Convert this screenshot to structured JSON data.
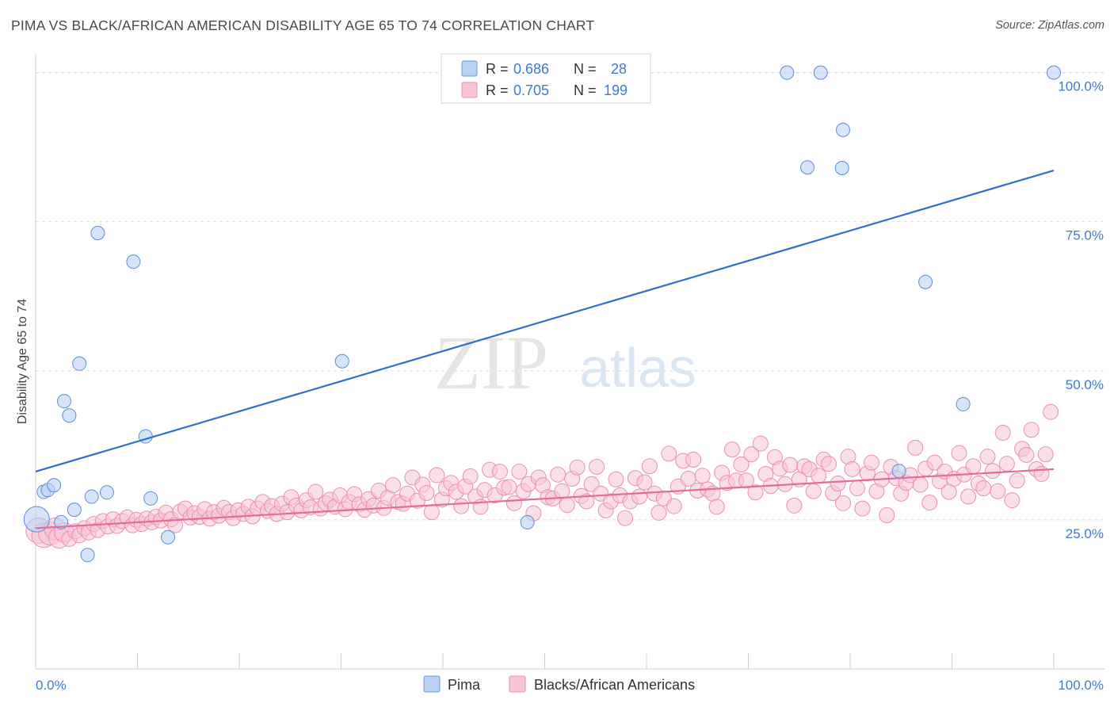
{
  "title": "PIMA VS BLACK/AFRICAN AMERICAN DISABILITY AGE 65 TO 74 CORRELATION CHART",
  "source": "Source: ZipAtlas.com",
  "watermark": {
    "zip": "ZIP",
    "atlas": "atlas"
  },
  "legend_top": [
    {
      "r_label": "R = ",
      "r_value": "0.686",
      "n_label": "N = ",
      "n_value": "28",
      "color": "#6a9ee0",
      "fill": "#b9d2f4"
    },
    {
      "r_label": "R = ",
      "r_value": "0.705",
      "n_label": "N = ",
      "n_value": "199",
      "color": "#ea8fb0",
      "fill": "#f7c5d6"
    }
  ],
  "legend_bottom": [
    {
      "label": "Pima",
      "fill": "#b9d2f4",
      "stroke": "#6a9ee0"
    },
    {
      "label": "Blacks/African Americans",
      "fill": "#f7c5d6",
      "stroke": "#ea8fb0"
    }
  ],
  "colors": {
    "accent_text": "#3c7bd4",
    "pima_line": "#2c6fcf",
    "black_line": "#e56b9a",
    "grid": "#d9d9d9"
  },
  "chart_data": {
    "type": "scatter",
    "title": "PIMA VS BLACK/AFRICAN AMERICAN DISABILITY AGE 65 TO 74 CORRELATION CHART",
    "xlabel": "",
    "ylabel": "Disability Age 65 to 74",
    "xlim": [
      0,
      100
    ],
    "ylim": [
      0,
      105
    ],
    "x_tick_labels": [
      "0.0%",
      "100.0%"
    ],
    "y_ticks": [
      25,
      50,
      75,
      100
    ],
    "y_tick_labels": [
      "25.0%",
      "50.0%",
      "75.0%",
      "100.0%"
    ],
    "grid": "horizontal dashed",
    "legend_position": "top-center",
    "series": [
      {
        "name": "Pima",
        "r": 0.686,
        "n": 28,
        "trend": [
          [
            0,
            33.1
          ],
          [
            100,
            83.6
          ]
        ],
        "points": [
          [
            0.1,
            25.1
          ],
          [
            0.8,
            29.7
          ],
          [
            1.2,
            30.0
          ],
          [
            1.8,
            30.8
          ],
          [
            2.5,
            24.6
          ],
          [
            2.8,
            44.9
          ],
          [
            3.3,
            42.5
          ],
          [
            3.8,
            26.7
          ],
          [
            4.3,
            51.2
          ],
          [
            5.1,
            19.1
          ],
          [
            5.5,
            28.9
          ],
          [
            6.1,
            73.1
          ],
          [
            7.0,
            29.6
          ],
          [
            9.6,
            68.3
          ],
          [
            10.8,
            39.0
          ],
          [
            11.3,
            28.6
          ],
          [
            13.0,
            22.1
          ],
          [
            30.1,
            51.6
          ],
          [
            48.3,
            24.6
          ],
          [
            73.8,
            100
          ],
          [
            77.1,
            100
          ],
          [
            75.8,
            84.1
          ],
          [
            79.3,
            90.4
          ],
          [
            79.2,
            84.0
          ],
          [
            84.8,
            33.2
          ],
          [
            87.4,
            64.9
          ],
          [
            91.1,
            44.4
          ],
          [
            100,
            100
          ]
        ]
      },
      {
        "name": "Blacks/African Americans",
        "r": 0.705,
        "n": 199,
        "trend": [
          [
            0,
            23.6
          ],
          [
            100,
            33.5
          ]
        ],
        "points": [
          [
            0.3,
            23.2
          ],
          [
            0.8,
            22.4
          ],
          [
            1.4,
            22.7
          ],
          [
            1.9,
            23.5
          ],
          [
            2.3,
            22.0
          ],
          [
            2.8,
            22.9
          ],
          [
            3.3,
            21.8
          ],
          [
            3.9,
            23.1
          ],
          [
            4.3,
            22.4
          ],
          [
            4.8,
            23.6
          ],
          [
            5.2,
            22.9
          ],
          [
            5.7,
            24.3
          ],
          [
            6.1,
            23.3
          ],
          [
            6.6,
            24.8
          ],
          [
            7.1,
            23.9
          ],
          [
            7.6,
            25.1
          ],
          [
            8.0,
            24.0
          ],
          [
            8.5,
            24.8
          ],
          [
            9.0,
            25.4
          ],
          [
            9.5,
            24.1
          ],
          [
            9.9,
            25.0
          ],
          [
            10.4,
            24.3
          ],
          [
            10.9,
            25.2
          ],
          [
            11.4,
            24.6
          ],
          [
            11.8,
            25.5
          ],
          [
            12.3,
            24.9
          ],
          [
            12.8,
            26.2
          ],
          [
            13.3,
            25.1
          ],
          [
            13.7,
            24.1
          ],
          [
            14.2,
            26.4
          ],
          [
            14.7,
            26.9
          ],
          [
            15.2,
            25.4
          ],
          [
            15.6,
            26.1
          ],
          [
            16.1,
            25.5
          ],
          [
            16.6,
            26.8
          ],
          [
            17.1,
            25.2
          ],
          [
            17.5,
            26.3
          ],
          [
            18.0,
            25.7
          ],
          [
            18.5,
            27.0
          ],
          [
            19.0,
            26.3
          ],
          [
            19.4,
            25.3
          ],
          [
            19.9,
            26.6
          ],
          [
            20.4,
            26.0
          ],
          [
            20.9,
            27.2
          ],
          [
            21.3,
            25.6
          ],
          [
            21.8,
            26.9
          ],
          [
            22.3,
            28.0
          ],
          [
            22.8,
            26.5
          ],
          [
            23.2,
            27.3
          ],
          [
            23.7,
            26.0
          ],
          [
            24.2,
            27.7
          ],
          [
            24.7,
            26.3
          ],
          [
            25.1,
            28.8
          ],
          [
            25.6,
            27.4
          ],
          [
            26.1,
            26.6
          ],
          [
            26.6,
            28.3
          ],
          [
            27.0,
            27.1
          ],
          [
            27.5,
            29.7
          ],
          [
            28.0,
            26.9
          ],
          [
            28.5,
            27.8
          ],
          [
            28.9,
            28.4
          ],
          [
            29.4,
            27.2
          ],
          [
            29.9,
            29.1
          ],
          [
            30.4,
            26.8
          ],
          [
            30.8,
            28.0
          ],
          [
            31.3,
            29.3
          ],
          [
            31.8,
            27.6
          ],
          [
            32.3,
            26.7
          ],
          [
            32.7,
            28.5
          ],
          [
            33.2,
            27.4
          ],
          [
            33.7,
            29.9
          ],
          [
            34.2,
            27.0
          ],
          [
            34.6,
            28.7
          ],
          [
            35.1,
            30.8
          ],
          [
            35.6,
            28.0
          ],
          [
            36.1,
            27.7
          ],
          [
            36.5,
            29.4
          ],
          [
            37.0,
            32.1
          ],
          [
            37.5,
            28.2
          ],
          [
            38.0,
            30.9
          ],
          [
            38.4,
            29.5
          ],
          [
            38.9,
            26.3
          ],
          [
            39.4,
            32.5
          ],
          [
            39.9,
            28.4
          ],
          [
            40.3,
            30.3
          ],
          [
            40.8,
            31.2
          ],
          [
            41.3,
            29.7
          ],
          [
            41.8,
            27.3
          ],
          [
            42.2,
            30.6
          ],
          [
            42.7,
            32.3
          ],
          [
            43.2,
            28.9
          ],
          [
            43.7,
            27.2
          ],
          [
            44.1,
            30.0
          ],
          [
            44.6,
            33.4
          ],
          [
            45.1,
            29.1
          ],
          [
            45.6,
            33.1
          ],
          [
            46.0,
            30.4
          ],
          [
            46.5,
            30.5
          ],
          [
            47.0,
            27.8
          ],
          [
            47.5,
            33.1
          ],
          [
            47.9,
            29.8
          ],
          [
            48.4,
            31.0
          ],
          [
            48.9,
            26.1
          ],
          [
            49.4,
            32.1
          ],
          [
            49.8,
            30.8
          ],
          [
            50.3,
            28.8
          ],
          [
            50.8,
            28.6
          ],
          [
            51.3,
            32.6
          ],
          [
            51.7,
            29.8
          ],
          [
            52.2,
            27.5
          ],
          [
            52.7,
            31.9
          ],
          [
            53.2,
            33.8
          ],
          [
            53.6,
            29.0
          ],
          [
            54.1,
            28.1
          ],
          [
            54.6,
            31.0
          ],
          [
            55.1,
            33.9
          ],
          [
            55.5,
            29.4
          ],
          [
            56.0,
            26.6
          ],
          [
            56.5,
            28.1
          ],
          [
            57.0,
            31.8
          ],
          [
            57.4,
            29.1
          ],
          [
            57.9,
            25.3
          ],
          [
            58.4,
            28.1
          ],
          [
            58.9,
            32.0
          ],
          [
            59.3,
            28.9
          ],
          [
            59.8,
            31.3
          ],
          [
            60.3,
            34.0
          ],
          [
            60.8,
            29.4
          ],
          [
            61.2,
            26.2
          ],
          [
            61.7,
            28.6
          ],
          [
            62.2,
            36.1
          ],
          [
            62.7,
            27.3
          ],
          [
            63.1,
            30.6
          ],
          [
            63.6,
            34.9
          ],
          [
            64.1,
            31.9
          ],
          [
            64.6,
            35.1
          ],
          [
            65.0,
            29.9
          ],
          [
            65.5,
            32.4
          ],
          [
            66.0,
            30.1
          ],
          [
            66.5,
            29.4
          ],
          [
            66.9,
            27.2
          ],
          [
            67.4,
            32.9
          ],
          [
            67.9,
            31.2
          ],
          [
            68.4,
            36.8
          ],
          [
            68.8,
            31.6
          ],
          [
            69.3,
            34.3
          ],
          [
            69.8,
            31.6
          ],
          [
            70.3,
            36.0
          ],
          [
            70.7,
            29.6
          ],
          [
            71.2,
            37.8
          ],
          [
            71.7,
            32.7
          ],
          [
            72.2,
            30.7
          ],
          [
            72.6,
            35.5
          ],
          [
            73.1,
            33.6
          ],
          [
            73.6,
            31.0
          ],
          [
            74.1,
            34.2
          ],
          [
            74.5,
            27.4
          ],
          [
            75.0,
            31.8
          ],
          [
            75.5,
            34.0
          ],
          [
            76.0,
            33.5
          ],
          [
            76.4,
            29.8
          ],
          [
            76.9,
            32.4
          ],
          [
            77.4,
            35.1
          ],
          [
            77.9,
            34.4
          ],
          [
            78.3,
            29.5
          ],
          [
            78.8,
            31.1
          ],
          [
            79.3,
            27.8
          ],
          [
            79.8,
            35.6
          ],
          [
            80.2,
            33.5
          ],
          [
            80.7,
            30.3
          ],
          [
            81.2,
            26.9
          ],
          [
            81.7,
            32.8
          ],
          [
            82.1,
            34.6
          ],
          [
            82.6,
            29.8
          ],
          [
            83.1,
            31.8
          ],
          [
            83.6,
            25.8
          ],
          [
            84.0,
            33.9
          ],
          [
            84.5,
            32.0
          ],
          [
            85.0,
            29.4
          ],
          [
            85.5,
            31.2
          ],
          [
            85.9,
            32.5
          ],
          [
            86.4,
            37.1
          ],
          [
            86.9,
            30.9
          ],
          [
            87.4,
            33.6
          ],
          [
            87.8,
            27.9
          ],
          [
            88.3,
            34.6
          ],
          [
            88.8,
            31.5
          ],
          [
            89.3,
            33.1
          ],
          [
            89.7,
            29.7
          ],
          [
            90.2,
            31.9
          ],
          [
            90.7,
            36.2
          ],
          [
            91.2,
            32.6
          ],
          [
            91.6,
            28.9
          ],
          [
            92.1,
            34.0
          ],
          [
            92.6,
            31.1
          ],
          [
            93.1,
            30.3
          ],
          [
            93.5,
            35.6
          ],
          [
            94.0,
            33.2
          ],
          [
            94.5,
            29.8
          ],
          [
            95.0,
            39.6
          ],
          [
            95.4,
            34.4
          ],
          [
            95.9,
            28.3
          ],
          [
            96.4,
            31.6
          ],
          [
            96.9,
            36.9
          ],
          [
            97.3,
            35.9
          ],
          [
            97.8,
            40.1
          ],
          [
            98.3,
            33.5
          ],
          [
            98.8,
            32.7
          ],
          [
            99.2,
            36.0
          ],
          [
            99.7,
            43.1
          ]
        ]
      }
    ]
  }
}
